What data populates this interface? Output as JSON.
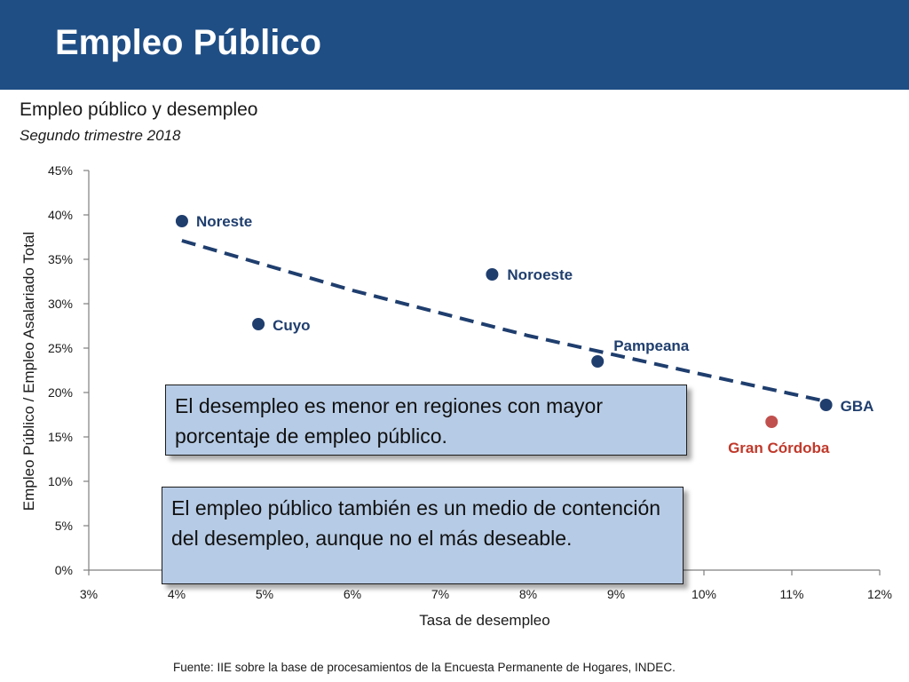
{
  "header": {
    "title": "Empleo Público"
  },
  "chart_data": {
    "type": "scatter",
    "title": "Empleo público y desempleo",
    "subtitle": "Segundo trimestre 2018",
    "xlabel": "Tasa de desempleo",
    "ylabel": "Empleo  Público / Empleo Asalariado Total",
    "xlim": [
      3,
      12
    ],
    "ylim": [
      0,
      45
    ],
    "x_ticks": [
      "3%",
      "4%",
      "5%",
      "6%",
      "7%",
      "8%",
      "9%",
      "10%",
      "11%",
      "12%"
    ],
    "y_ticks": [
      "0%",
      "5%",
      "10%",
      "15%",
      "20%",
      "25%",
      "30%",
      "35%",
      "40%",
      "45%"
    ],
    "grid": false,
    "points": [
      {
        "name": "Noreste",
        "x": 4.06,
        "y": 39.3,
        "color": "#1f3e6e",
        "label_color": "#1f3e6e"
      },
      {
        "name": "Noroeste",
        "x": 7.59,
        "y": 33.3,
        "color": "#1f3e6e",
        "label_color": "#1f3e6e"
      },
      {
        "name": "Cuyo",
        "x": 4.93,
        "y": 27.7,
        "color": "#1f3e6e",
        "label_color": "#1f3e6e"
      },
      {
        "name": "Pampeana",
        "x": 8.79,
        "y": 23.5,
        "color": "#1f3e6e",
        "label_color": "#1f3e6e"
      },
      {
        "name": "GBA",
        "x": 11.39,
        "y": 18.6,
        "color": "#1f3e6e",
        "label_color": "#1f3e6e"
      },
      {
        "name": "Gran Córdoba",
        "x": 10.77,
        "y": 16.7,
        "color": "#c0504d",
        "label_color": "#c0392b"
      }
    ],
    "trendline": {
      "style": "dashed",
      "color": "#1f3e6e",
      "points": [
        [
          4.06,
          37.1
        ],
        [
          6.0,
          31.5
        ],
        [
          8.0,
          26.4
        ],
        [
          10.0,
          22.0
        ],
        [
          11.39,
          19.0
        ]
      ]
    }
  },
  "callouts": [
    "El desempleo es menor en regiones con mayor porcentaje de empleo público.",
    "El empleo público también es un medio de contención del desempleo, aunque no el más deseable."
  ],
  "footnote": "Fuente: IIE sobre la base de procesamientos de la Encuesta Permanente de Hogares, INDEC."
}
